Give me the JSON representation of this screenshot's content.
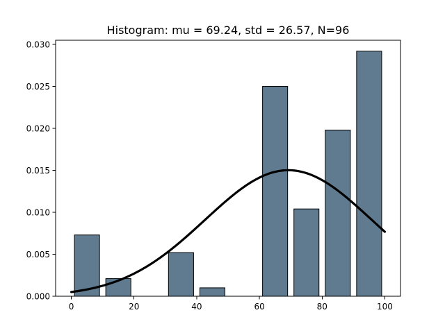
{
  "chart_data": {
    "type": "bar",
    "title": "Histogram: mu = 69.24,  std = 26.57,  N=96",
    "xlabel": "",
    "ylabel": "",
    "xlim": [
      -5,
      105
    ],
    "ylim": [
      0,
      0.0305
    ],
    "x_ticks": [
      0,
      20,
      40,
      60,
      80,
      100
    ],
    "x_tick_labels": [
      "0",
      "20",
      "40",
      "60",
      "80",
      "100"
    ],
    "y_ticks": [
      0.0,
      0.005,
      0.01,
      0.015,
      0.02,
      0.025,
      0.03
    ],
    "y_tick_labels": [
      "0.000",
      "0.005",
      "0.010",
      "0.015",
      "0.020",
      "0.025",
      "0.030"
    ],
    "bins": [
      [
        0,
        10
      ],
      [
        10,
        20
      ],
      [
        20,
        30
      ],
      [
        30,
        40
      ],
      [
        40,
        50
      ],
      [
        50,
        60
      ],
      [
        60,
        70
      ],
      [
        70,
        80
      ],
      [
        80,
        90
      ],
      [
        90,
        100
      ]
    ],
    "values": [
      0.0073,
      0.0021,
      0.0,
      0.0052,
      0.001,
      0.0,
      0.025,
      0.0104,
      0.0198,
      0.0292
    ],
    "bar_color": "#607b8f",
    "curve": {
      "type": "line",
      "distribution": "normal",
      "mu": 69.24,
      "std": 26.57,
      "x_range": [
        0,
        100
      ],
      "color": "#000000"
    },
    "grid": false,
    "legend": "none"
  }
}
